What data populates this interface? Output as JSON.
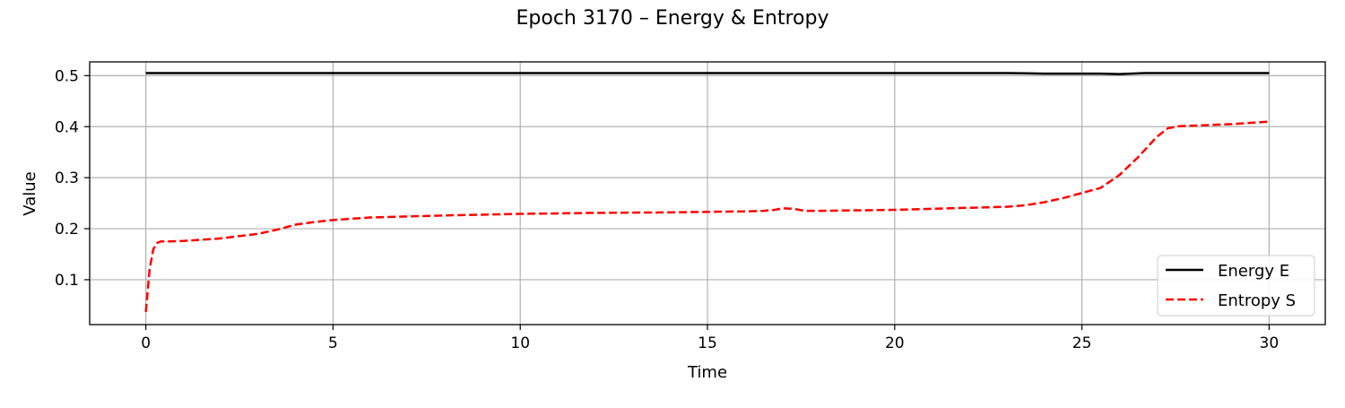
{
  "chart_data": {
    "type": "line",
    "title": "Epoch 3170 – Energy & Entropy",
    "xlabel": "Time",
    "ylabel": "Value",
    "xlim": [
      -1.5,
      31.5
    ],
    "ylim": [
      0.012,
      0.527
    ],
    "xticks": [
      0,
      5,
      10,
      15,
      20,
      25,
      30
    ],
    "yticks": [
      0.1,
      0.2,
      0.3,
      0.4,
      0.5
    ],
    "xtick_labels": [
      "0",
      "5",
      "10",
      "15",
      "20",
      "25",
      "30"
    ],
    "ytick_labels": [
      "0.1",
      "0.2",
      "0.3",
      "0.4",
      "0.5"
    ],
    "grid": true,
    "legend_position": "lower-right",
    "series": [
      {
        "name": "Energy E",
        "color": "#000000",
        "style": "solid",
        "x": [
          0,
          5,
          10,
          15,
          20,
          23,
          24,
          25,
          25.5,
          26,
          26.3,
          26.7,
          27,
          30
        ],
        "y": [
          0.505,
          0.505,
          0.505,
          0.505,
          0.505,
          0.505,
          0.504,
          0.504,
          0.504,
          0.503,
          0.504,
          0.505,
          0.505,
          0.505
        ]
      },
      {
        "name": "Entropy S",
        "color": "#ff0000",
        "style": "dashed",
        "x": [
          0,
          0.1,
          0.2,
          0.3,
          0.4,
          0.6,
          1,
          2,
          3,
          3.5,
          4,
          4.5,
          5,
          6,
          8,
          10,
          12,
          14,
          15,
          16,
          16.5,
          16.8,
          17,
          17.3,
          17.6,
          18,
          19,
          20,
          21,
          22,
          23,
          23.5,
          24,
          24.5,
          25,
          25.5,
          26,
          26.5,
          27,
          27.3,
          27.6,
          28,
          29,
          30
        ],
        "y": [
          0.037,
          0.12,
          0.16,
          0.172,
          0.175,
          0.175,
          0.176,
          0.181,
          0.19,
          0.198,
          0.208,
          0.213,
          0.217,
          0.222,
          0.226,
          0.229,
          0.231,
          0.232,
          0.233,
          0.234,
          0.235,
          0.237,
          0.24,
          0.239,
          0.235,
          0.235,
          0.236,
          0.237,
          0.239,
          0.241,
          0.243,
          0.246,
          0.252,
          0.26,
          0.27,
          0.28,
          0.305,
          0.34,
          0.38,
          0.397,
          0.401,
          0.402,
          0.405,
          0.41
        ]
      }
    ]
  }
}
